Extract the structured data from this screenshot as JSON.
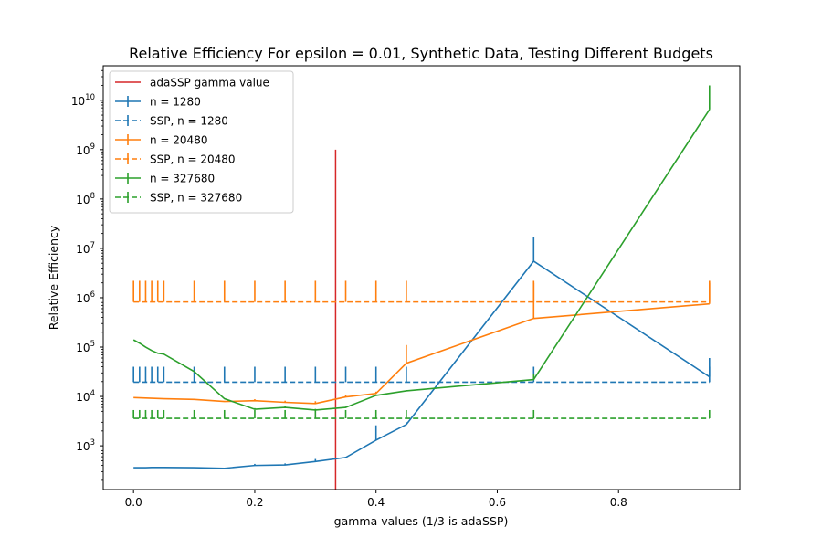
{
  "chart_data": {
    "type": "line",
    "title": "Relative Efficiency For epsilon = 0.01, Synthetic Data, Testing Different Budgets",
    "xlabel": "gamma values (1/3 is adaSSP)",
    "ylabel": "Relative Efficiency",
    "xlim": [
      -0.05,
      1.0
    ],
    "ylim": [
      130,
      50000000000
    ],
    "yscale": "log",
    "x_ticks": [
      {
        "value": 0.0,
        "label": "0.0"
      },
      {
        "value": 0.2,
        "label": "0.2"
      },
      {
        "value": 0.4,
        "label": "0.4"
      },
      {
        "value": 0.6,
        "label": "0.6"
      },
      {
        "value": 0.8,
        "label": "0.8"
      }
    ],
    "y_ticks": [
      {
        "value": 1000,
        "base": "10",
        "exp": "3"
      },
      {
        "value": 10000,
        "base": "10",
        "exp": "4"
      },
      {
        "value": 100000,
        "base": "10",
        "exp": "5"
      },
      {
        "value": 1000000,
        "base": "10",
        "exp": "6"
      },
      {
        "value": 10000000,
        "base": "10",
        "exp": "7"
      },
      {
        "value": 100000000,
        "base": "10",
        "exp": "8"
      },
      {
        "value": 1000000000,
        "base": "10",
        "exp": "9"
      },
      {
        "value": 10000000000,
        "base": "10",
        "exp": "10"
      }
    ],
    "grid": false,
    "legend_position": "top-left",
    "x": [
      0.0,
      0.01,
      0.02,
      0.03,
      0.04,
      0.05,
      0.1,
      0.15,
      0.2,
      0.25,
      0.3,
      0.35,
      0.4,
      0.45,
      0.66,
      0.95
    ],
    "vline": {
      "name": "adaSSP gamma value",
      "x": 0.3333,
      "ymin": 130,
      "ymax": 1000000000,
      "color": "#d62728"
    },
    "series": [
      {
        "name": "n = 1280",
        "style": "solid",
        "color": "#1f77b4",
        "values": [
          360,
          360,
          360,
          365,
          365,
          365,
          360,
          350,
          400,
          410,
          480,
          580,
          1300,
          2700,
          5500000,
          25000
        ],
        "err_hi": [
          360,
          360,
          360,
          365,
          365,
          365,
          360,
          350,
          430,
          440,
          540,
          600,
          2600,
          3000,
          17000000,
          60000
        ]
      },
      {
        "name": "SSP, n = 1280",
        "style": "dashed",
        "color": "#1f77b4",
        "values": [
          19500,
          19500,
          19500,
          19500,
          19500,
          19500,
          19500,
          19500,
          19500,
          19500,
          19500,
          19500,
          19500,
          19500,
          19500,
          19500
        ],
        "err_hi": [
          40000,
          40000,
          40000,
          40000,
          40000,
          40000,
          40000,
          40000,
          40000,
          40000,
          40000,
          40000,
          40000,
          40000,
          40000,
          40000
        ]
      },
      {
        "name": "n = 20480",
        "style": "solid",
        "color": "#ff7f0e",
        "values": [
          9500,
          9400,
          9300,
          9200,
          9100,
          9000,
          8700,
          7900,
          8200,
          7600,
          7200,
          9800,
          11500,
          47000,
          380000,
          750000
        ],
        "err_hi": [
          9500,
          9400,
          9300,
          9200,
          9100,
          9000,
          8700,
          7900,
          8800,
          8200,
          8000,
          10500,
          12500,
          110000,
          2000000,
          2000000
        ]
      },
      {
        "name": "SSP, n = 20480",
        "style": "dashed",
        "color": "#ff7f0e",
        "values": [
          820000,
          820000,
          820000,
          820000,
          820000,
          820000,
          820000,
          820000,
          820000,
          820000,
          820000,
          820000,
          820000,
          820000,
          820000,
          820000
        ],
        "err_hi": [
          2200000,
          2200000,
          2200000,
          2200000,
          2200000,
          2200000,
          2200000,
          2200000,
          2200000,
          2200000,
          2200000,
          2200000,
          2200000,
          2200000,
          2200000,
          2200000
        ]
      },
      {
        "name": "n = 327680",
        "style": "solid",
        "color": "#2ca02c",
        "values": [
          140000,
          120000,
          100000,
          85000,
          75000,
          72000,
          32000,
          9000,
          5500,
          6000,
          5300,
          6000,
          10500,
          13000,
          22000,
          6500000000
        ],
        "err_hi": [
          140000,
          120000,
          100000,
          85000,
          75000,
          72000,
          32000,
          9000,
          5800,
          6300,
          5600,
          6200,
          11000,
          13500,
          28000,
          20000000000
        ]
      },
      {
        "name": "SSP, n = 327680",
        "style": "dashed",
        "color": "#2ca02c",
        "values": [
          3600,
          3600,
          3600,
          3600,
          3600,
          3600,
          3600,
          3600,
          3600,
          3600,
          3600,
          3600,
          3600,
          3600,
          3600,
          3600
        ],
        "err_hi": [
          5300,
          5300,
          5300,
          5300,
          5300,
          5300,
          5300,
          5300,
          5300,
          5300,
          5300,
          5300,
          5300,
          5300,
          5300,
          5300
        ]
      }
    ]
  }
}
